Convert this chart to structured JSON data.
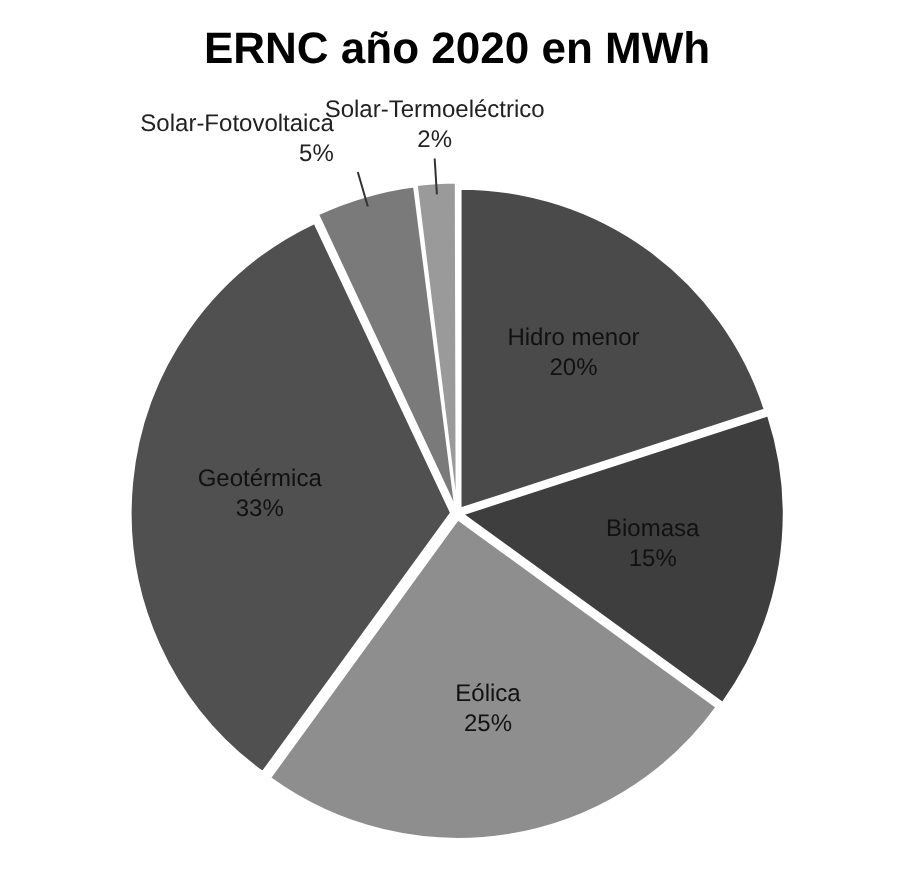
{
  "chart_data": {
    "type": "pie",
    "title": "ERNC año 2020 en MWh",
    "categories": [
      "Hidro menor",
      "Biomasa",
      "Eólica",
      "Geotérmica",
      "Solar-Fotovoltaica",
      "Solar-Termoeléctrico"
    ],
    "values": [
      20,
      15,
      25,
      33,
      5,
      2
    ],
    "value_labels": [
      "20%",
      "15%",
      "25%",
      "33%",
      "5%",
      "2%"
    ],
    "colors": [
      "#4a4a4a",
      "#3e3e3e",
      "#8e8e8e",
      "#505050",
      "#7a7a7a",
      "#9a9a9a"
    ],
    "legend": false
  }
}
